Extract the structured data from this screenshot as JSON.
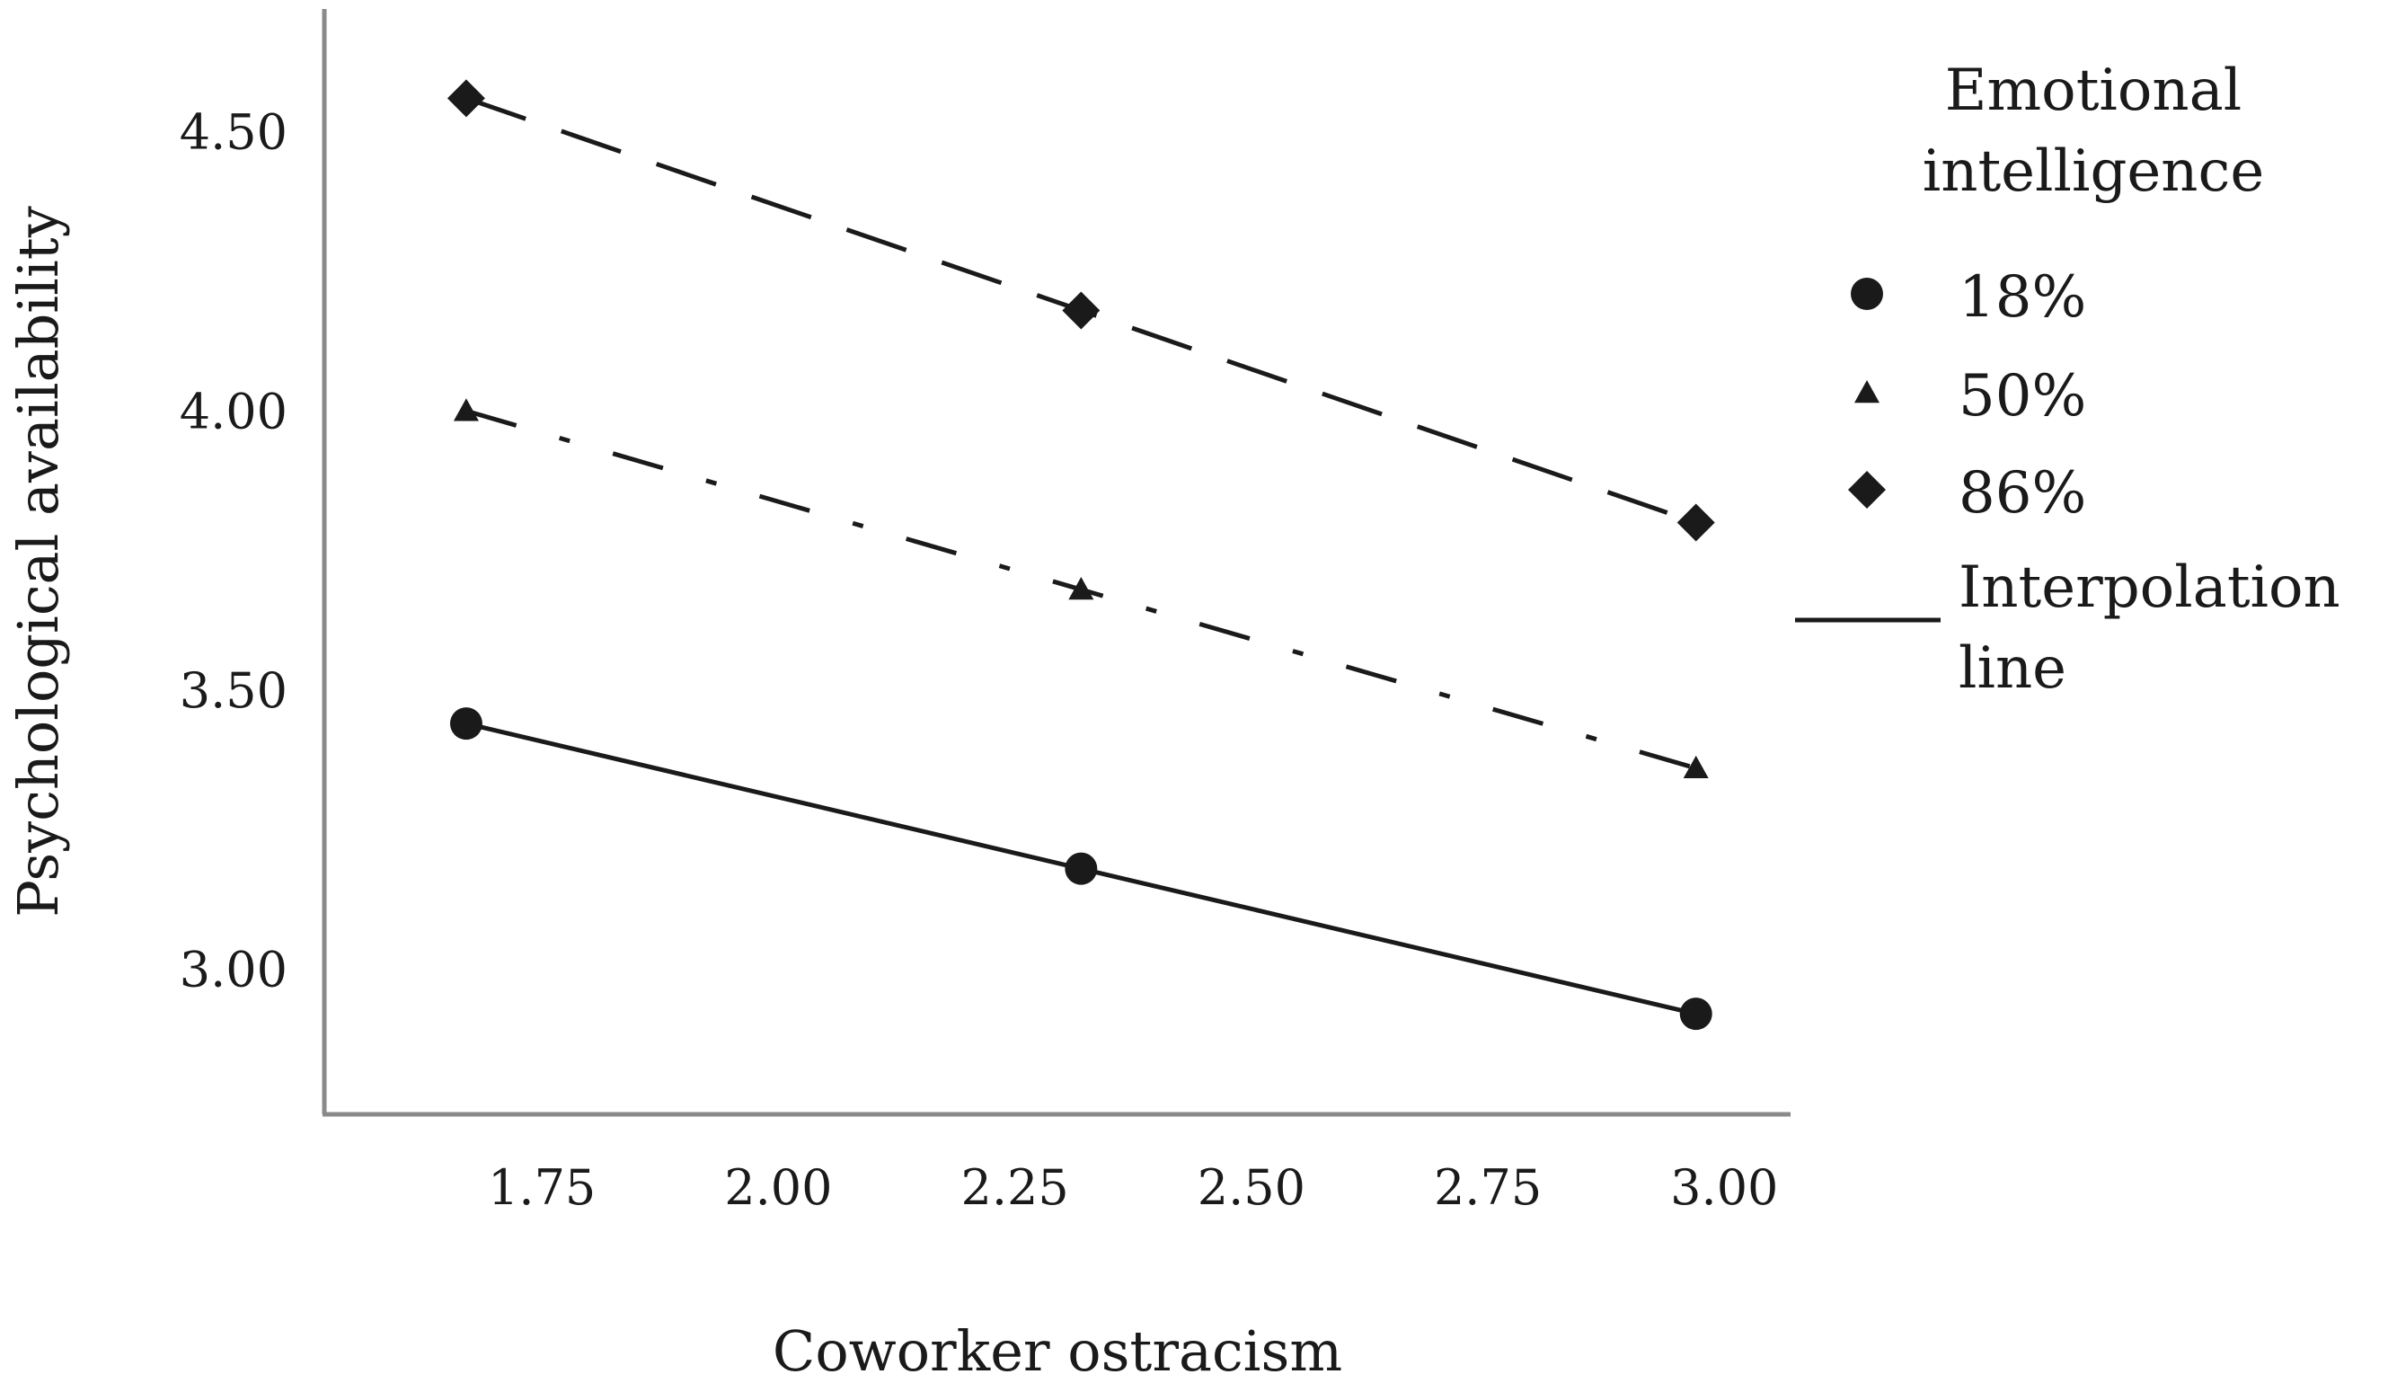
{
  "chart_data": {
    "type": "line",
    "title": "",
    "xlabel": "Coworker ostracism",
    "ylabel": "Psychological availability",
    "xlim": [
      1.52,
      3.07
    ],
    "ylim": [
      2.74,
      4.72
    ],
    "x_ticks": [
      "1.75",
      "2.00",
      "2.25",
      "2.50",
      "2.75",
      "3.00"
    ],
    "y_ticks": [
      "3.00",
      "3.50",
      "4.00",
      "4.50"
    ],
    "grid": false,
    "x": [
      1.67,
      2.32,
      2.97
    ],
    "series": [
      {
        "name": "18%",
        "marker": "circle",
        "dash": "solid",
        "values": [
          3.44,
          3.18,
          2.92
        ]
      },
      {
        "name": "50%",
        "marker": "triangle",
        "dash": "dashdot",
        "values": [
          4.0,
          3.68,
          3.36
        ]
      },
      {
        "name": "86%",
        "marker": "diamond",
        "dash": "dashed",
        "values": [
          4.56,
          4.18,
          3.8
        ]
      }
    ],
    "legend": {
      "placement": "right",
      "title_lines": [
        "Emotional",
        "intelligence"
      ],
      "line_entry_lines": [
        "Interpolation",
        "line"
      ]
    },
    "colors": {
      "ink": "#1a1a1a",
      "axis": "#8a8a8a"
    }
  }
}
